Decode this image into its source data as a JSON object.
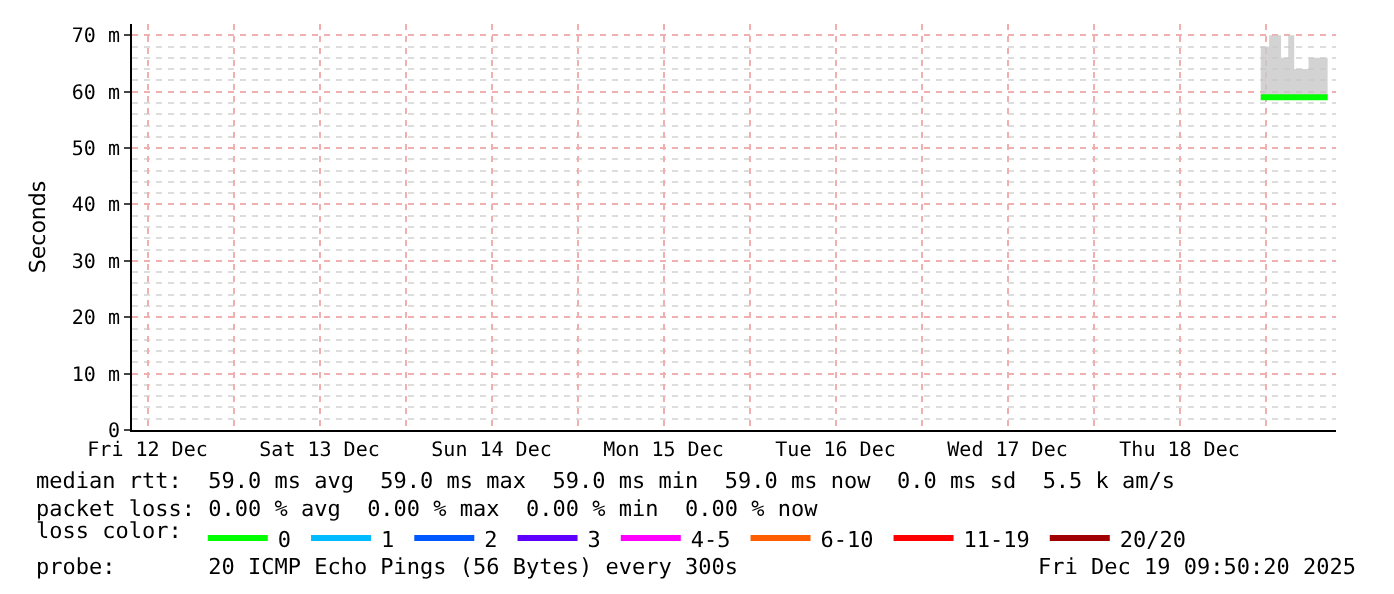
{
  "chart_data": {
    "type": "step",
    "ylabel": "Seconds",
    "legend_title": "loss color:",
    "legend": "bottom",
    "grid": true,
    "xlim": [
      "2025-12-12T09:50",
      "2025-12-19T09:50"
    ],
    "xticks": [
      {
        "value": "2025-12-12T12:00",
        "label": "Fri 12 Dec"
      },
      {
        "value": "2025-12-13T00:00",
        "label": null
      },
      {
        "value": "2025-12-13T12:00",
        "label": "Sat 13 Dec"
      },
      {
        "value": "2025-12-14T00:00",
        "label": null
      },
      {
        "value": "2025-12-14T12:00",
        "label": "Sun 14 Dec"
      },
      {
        "value": "2025-12-15T00:00",
        "label": null
      },
      {
        "value": "2025-12-15T12:00",
        "label": "Mon 15 Dec"
      },
      {
        "value": "2025-12-16T00:00",
        "label": null
      },
      {
        "value": "2025-12-16T12:00",
        "label": "Tue 16 Dec"
      },
      {
        "value": "2025-12-17T00:00",
        "label": null
      },
      {
        "value": "2025-12-17T12:00",
        "label": "Wed 17 Dec"
      },
      {
        "value": "2025-12-18T00:00",
        "label": null
      },
      {
        "value": "2025-12-18T12:00",
        "label": "Thu 18 Dec"
      },
      {
        "value": "2025-12-19T00:00",
        "label": null
      }
    ],
    "ylim": [
      0,
      72
    ],
    "yticks": [
      0,
      {
        "value": 10,
        "label": "10 m"
      },
      {
        "value": 20,
        "label": "20 m"
      },
      {
        "value": 30,
        "label": "30 m"
      },
      {
        "value": 40,
        "label": "40 m"
      },
      {
        "value": 50,
        "label": "50 m"
      },
      {
        "value": 60,
        "label": "60 m"
      },
      {
        "value": 70,
        "label": "70 m"
      }
    ],
    "x": [
      "2025-12-18T23:20",
      "2025-12-19T00:30",
      "2025-12-19T02:10",
      "2025-12-19T03:10",
      "2025-12-19T04:00",
      "2025-12-19T06:00",
      "2025-12-19T08:40"
    ],
    "series": [
      {
        "name": "0",
        "color": "#00ff00",
        "values": [
          59,
          59,
          59,
          59,
          59,
          59,
          59
        ],
        "lower": [
          58.5,
          58.5,
          58.5,
          58.5,
          58.5,
          58.5,
          58.5
        ],
        "upper": [
          68,
          70,
          66,
          70,
          64,
          66,
          66
        ]
      },
      {
        "name": "1",
        "color": "#00bbff",
        "values": [
          null,
          null,
          null,
          null,
          null,
          null,
          null
        ]
      },
      {
        "name": "2",
        "color": "#0059ff",
        "values": [
          null,
          null,
          null,
          null,
          null,
          null,
          null
        ]
      },
      {
        "name": "3",
        "color": "#5e00ff",
        "values": [
          null,
          null,
          null,
          null,
          null,
          null,
          null
        ]
      },
      {
        "name": "4-5",
        "color": "#ff00ff",
        "values": [
          null,
          null,
          null,
          null,
          null,
          null,
          null
        ]
      },
      {
        "name": "6-10",
        "color": "#ff5e00",
        "values": [
          null,
          null,
          null,
          null,
          null,
          null,
          null
        ]
      },
      {
        "name": "11-19",
        "color": "#ff0000",
        "values": [
          null,
          null,
          null,
          null,
          null,
          null,
          null
        ]
      },
      {
        "name": "20/20",
        "color": "#a10000",
        "values": [
          null,
          null,
          null,
          null,
          null,
          null,
          null
        ]
      }
    ],
    "annotations": [
      "median rtt:  59.0 ms avg  59.0 ms max  59.0 ms min  59.0 ms now  0.0 ms sd  5.5 k am/s",
      "packet loss: 0.00 % avg  0.00 % max  0.00 % min  0.00 % now",
      "probe:       20 ICMP Echo Pings (56 Bytes) every 300s",
      "Fri Dec 19 09:50:20 2025"
    ]
  }
}
